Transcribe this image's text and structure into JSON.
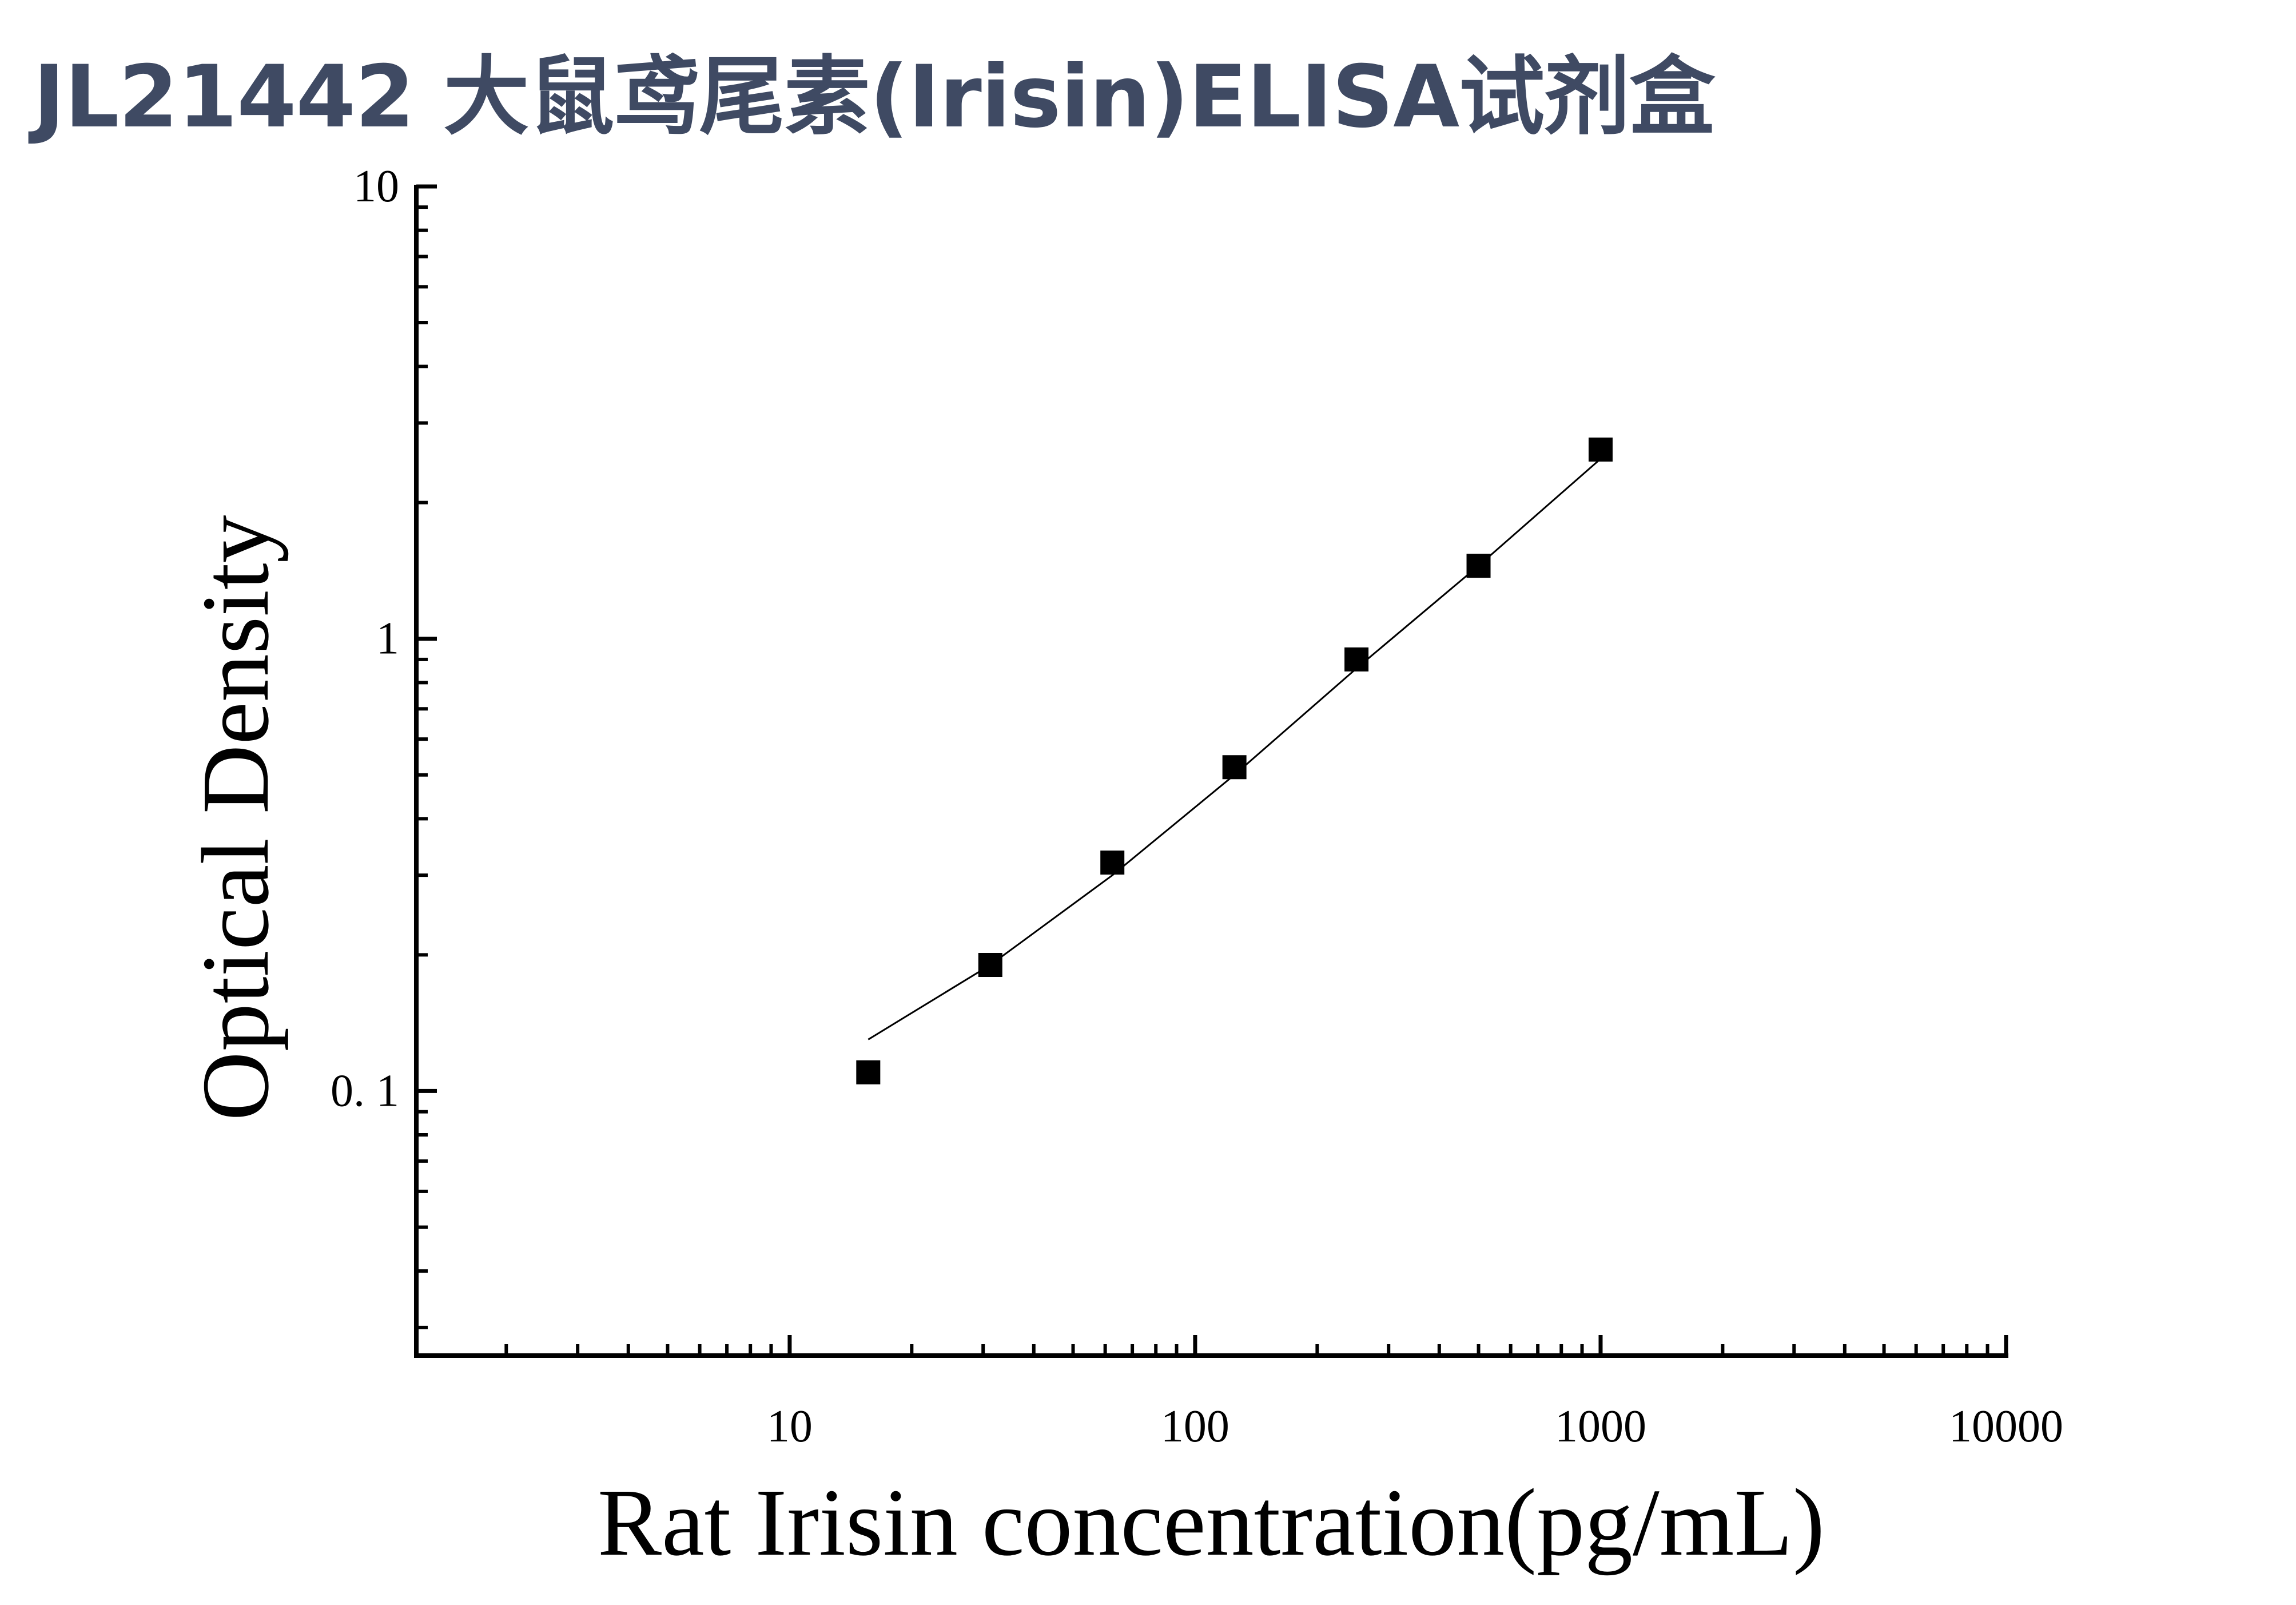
{
  "page": {
    "title": "JL21442 大鼠鸢尾素(Irisin)ELISA试剂盒"
  },
  "chart_data": {
    "type": "scatter",
    "title": "JL21442 大鼠鸢尾素(Irisin)ELISA试剂盒",
    "xlabel": "Rat Irisin concentration(pg/mL)",
    "ylabel": "Optical Density",
    "xscale": "log",
    "yscale": "log",
    "xlim": [
      1.2,
      10000
    ],
    "ylim": [
      0.026,
      10
    ],
    "x_ticks": [
      {
        "value": 10,
        "label": "10"
      },
      {
        "value": 100,
        "label": "100"
      },
      {
        "value": 1000,
        "label": "1000"
      },
      {
        "value": 10000,
        "label": "10000"
      }
    ],
    "y_ticks": [
      {
        "value": 0.1,
        "label": "0. 1"
      },
      {
        "value": 1,
        "label": "1"
      },
      {
        "value": 10,
        "label": "10"
      }
    ],
    "grid": false,
    "legend": "none",
    "marker": "square",
    "series": [
      {
        "x": [
          15.625,
          31.25,
          62.5,
          125,
          250,
          500,
          1000
        ],
        "y": [
          0.11,
          0.19,
          0.32,
          0.52,
          0.9,
          1.45,
          2.62
        ]
      }
    ],
    "fit_curve": {
      "x": [
        15.625,
        31.25,
        62.5,
        125,
        250,
        500,
        1000
      ],
      "y": [
        0.13,
        0.19,
        0.3,
        0.5,
        0.86,
        1.45,
        2.5
      ]
    },
    "colors": {
      "marker": "#000000",
      "line": "#000000",
      "title": "#3f4a63"
    }
  }
}
